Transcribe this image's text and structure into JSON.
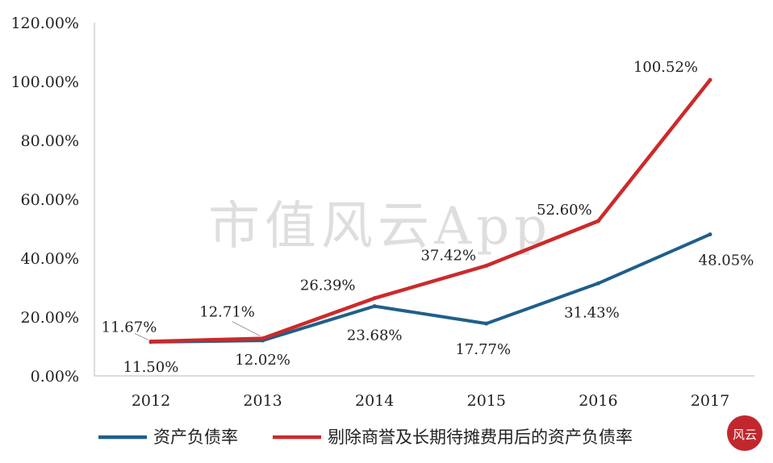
{
  "chart_data": {
    "type": "line",
    "categories": [
      "2012",
      "2013",
      "2014",
      "2015",
      "2016",
      "2017"
    ],
    "ylim": [
      0,
      120
    ],
    "yticks": [
      "0.00%",
      "20.00%",
      "40.00%",
      "60.00%",
      "80.00%",
      "100.00%",
      "120.00%"
    ],
    "grid": false,
    "legend_position": "bottom",
    "series": [
      {
        "name": "资产负债率",
        "color": "#1f5f8b",
        "values": [
          11.5,
          12.02,
          23.68,
          17.77,
          31.43,
          48.05
        ],
        "labels": [
          "11.50%",
          "12.02%",
          "23.68%",
          "17.77%",
          "31.43%",
          "48.05%"
        ]
      },
      {
        "name": "剔除商誉及长期待摊费用后的资产负债率",
        "color": "#cc2a2a",
        "values": [
          11.67,
          12.71,
          26.39,
          37.42,
          52.6,
          100.52
        ],
        "labels": [
          "11.67%",
          "12.71%",
          "26.39%",
          "37.42%",
          "52.60%",
          "100.52%"
        ]
      }
    ]
  },
  "watermark": "市值风云App",
  "logo_text": "风云"
}
